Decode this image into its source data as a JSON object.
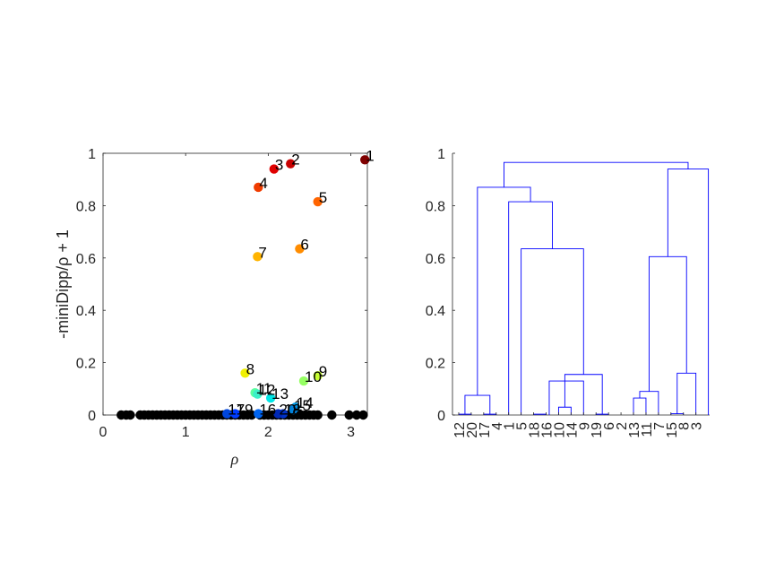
{
  "chart_data": [
    {
      "type": "scatter",
      "xlabel": "ρ",
      "ylabel": "-miniDipp/ρ + 1",
      "xlim": [
        0,
        3.2
      ],
      "ylim": [
        0,
        1
      ],
      "x_ticks": [
        "0",
        "1",
        "2",
        "3"
      ],
      "y_ticks": [
        "0",
        "0.2",
        "0.4",
        "0.6",
        "0.8",
        "1"
      ],
      "labeled_points": [
        {
          "label": "1",
          "x": 3.17,
          "y": 0.975,
          "color": "#7f0000"
        },
        {
          "label": "2",
          "x": 2.27,
          "y": 0.96,
          "color": "#c80000"
        },
        {
          "label": "3",
          "x": 2.07,
          "y": 0.94,
          "color": "#e00000"
        },
        {
          "label": "4",
          "x": 1.88,
          "y": 0.87,
          "color": "#f03c00"
        },
        {
          "label": "5",
          "x": 2.6,
          "y": 0.815,
          "color": "#ff6400"
        },
        {
          "label": "6",
          "x": 2.38,
          "y": 0.635,
          "color": "#ff8c00"
        },
        {
          "label": "7",
          "x": 1.87,
          "y": 0.605,
          "color": "#ffb400"
        },
        {
          "label": "8",
          "x": 1.72,
          "y": 0.16,
          "color": "#f0f000"
        },
        {
          "label": "9",
          "x": 2.6,
          "y": 0.15,
          "color": "#c8ff32"
        },
        {
          "label": "10",
          "x": 2.43,
          "y": 0.13,
          "color": "#96ff64"
        },
        {
          "label": "11",
          "x": 1.84,
          "y": 0.085,
          "color": "#5affa0"
        },
        {
          "label": "12",
          "x": 1.87,
          "y": 0.08,
          "color": "#3cf0c8"
        },
        {
          "label": "13",
          "x": 2.03,
          "y": 0.065,
          "color": "#00e6e6"
        },
        {
          "label": "14",
          "x": 2.33,
          "y": 0.03,
          "color": "#00a0f0"
        },
        {
          "label": "15",
          "x": 2.3,
          "y": 0.02,
          "color": "#0082dc"
        },
        {
          "label": "16",
          "x": 1.88,
          "y": 0.005,
          "color": "#0064f0"
        },
        {
          "label": "17",
          "x": 1.5,
          "y": 0.005,
          "color": "#0046dc"
        },
        {
          "label": "18",
          "x": 2.18,
          "y": 0.005,
          "color": "#0032c8"
        },
        {
          "label": "19",
          "x": 1.6,
          "y": 0.005,
          "color": "#003cff"
        },
        {
          "label": "20",
          "x": 2.12,
          "y": 0.005,
          "color": "#0028b4"
        }
      ],
      "zero_points_x": [
        0.22,
        0.28,
        0.33,
        0.45,
        0.5,
        0.55,
        0.6,
        0.65,
        0.7,
        0.75,
        0.8,
        0.85,
        0.9,
        0.95,
        1.0,
        1.05,
        1.1,
        1.15,
        1.2,
        1.25,
        1.3,
        1.35,
        1.4,
        1.45,
        1.5,
        1.55,
        1.6,
        1.65,
        1.7,
        1.75,
        1.8,
        1.9,
        1.95,
        2.0,
        2.05,
        2.1,
        2.15,
        2.2,
        2.25,
        2.3,
        2.35,
        2.4,
        2.45,
        2.5,
        2.55,
        2.6,
        2.77,
        2.98,
        3.07,
        3.15
      ],
      "zero_point_color": "#000000"
    },
    {
      "type": "dendrogram",
      "ylim": [
        0,
        1
      ],
      "y_ticks": [
        "0",
        "0.2",
        "0.4",
        "0.6",
        "0.8",
        "1"
      ],
      "leaf_order": [
        "12",
        "20",
        "17",
        "4",
        "1",
        "5",
        "18",
        "16",
        "10",
        "14",
        "9",
        "19",
        "6",
        "2",
        "13",
        "11",
        "7",
        "15",
        "8",
        "3"
      ],
      "merges": [
        {
          "left": 1,
          "right": 2,
          "height": 0.003
        },
        {
          "left": 3,
          "right": 4,
          "height": 0.003
        },
        {
          "left": 7,
          "right": 8,
          "height": 0.003
        },
        {
          "left": 9,
          "right": 10,
          "height": 0.03
        },
        {
          "left": 12,
          "right": 13,
          "height": 0.003
        },
        {
          "left": 15,
          "right": 16,
          "height": 0.065
        },
        {
          "left": 18,
          "right": 19,
          "height": 0.005
        },
        {
          "left": 1.5,
          "right": 3.5,
          "height": 0.075
        },
        {
          "left": 8.25,
          "right": 11,
          "height": 0.13
        },
        {
          "left": 9.5,
          "right": 12.5,
          "height": 0.155
        },
        {
          "left": 15.5,
          "right": 17,
          "height": 0.09
        },
        {
          "left": 18.5,
          "right": 20,
          "height": 0.16
        },
        {
          "left": 6,
          "right": 11,
          "height": 0.635
        },
        {
          "left": 16.25,
          "right": 19.25,
          "height": 0.605
        },
        {
          "left": 5,
          "right": 8.5,
          "height": 0.815
        },
        {
          "left": 2.5,
          "right": 6.75,
          "height": 0.87
        },
        {
          "left": 17.75,
          "right": 21,
          "height": 0.94
        },
        {
          "left": 4.625,
          "right": 19.375,
          "height": 0.965
        }
      ],
      "line_color": "#0000ff"
    }
  ]
}
